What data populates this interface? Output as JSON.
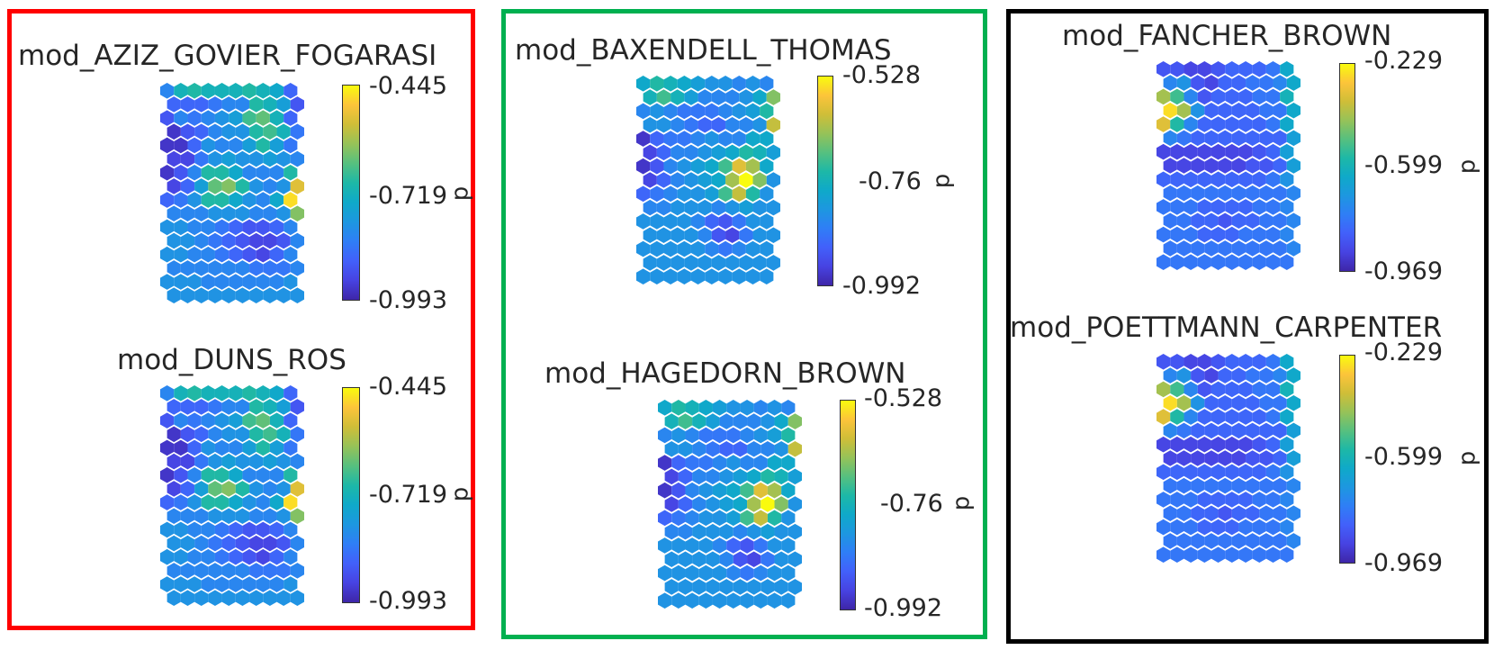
{
  "colormap": [
    "#3e26a8",
    "#4743e2",
    "#4260fa",
    "#2f7ef6",
    "#1d97e0",
    "#0fa9c9",
    "#1db8a7",
    "#56c07f",
    "#96c258",
    "#cfbe38",
    "#fcc43a",
    "#f9fb0e"
  ],
  "frames": [
    {
      "name": "red-group",
      "color": "#ff0000"
    },
    {
      "name": "green-group",
      "color": "#00b050"
    },
    {
      "name": "black-group",
      "color": "#000000"
    }
  ],
  "panels": [
    {
      "title": "mod_AZIZ_GOVIER_FOGARASI",
      "colorbar": {
        "max": "-0.445",
        "mid": "-0.719",
        "min": "-0.993",
        "label": "d"
      },
      "variant": "A"
    },
    {
      "title": "mod_DUNS_ROS",
      "colorbar": {
        "max": "-0.445",
        "mid": "-0.719",
        "min": "-0.993",
        "label": "d"
      },
      "variant": "A"
    },
    {
      "title": "mod_BAXENDELL_THOMAS",
      "colorbar": {
        "max": "-0.528",
        "mid": "-0.76",
        "min": "-0.992",
        "label": "d"
      },
      "variant": "B"
    },
    {
      "title": "mod_HAGEDORN_BROWN",
      "colorbar": {
        "max": "-0.528",
        "mid": "-0.76",
        "min": "-0.992",
        "label": "d"
      },
      "variant": "B"
    },
    {
      "title": "mod_FANCHER_BROWN",
      "colorbar": {
        "max": "-0.229",
        "mid": "-0.599",
        "min": "-0.969",
        "label": "d"
      },
      "variant": "C"
    },
    {
      "title": "mod_POETTMANN_CARPENTER",
      "colorbar": {
        "max": "-0.229",
        "mid": "-0.599",
        "min": "-0.969",
        "label": "d"
      },
      "variant": "C"
    }
  ],
  "chart_data": [
    {
      "type": "heatmap",
      "title": "mod_AZIZ_GOVIER_FOGARASI",
      "colorbar_label": "d",
      "zlim": [
        -0.993,
        -0.445
      ],
      "colorbar_ticks": [
        -0.993,
        -0.719,
        -0.445
      ],
      "grid": {
        "cols": 10,
        "rows": 16,
        "shape": "hexagonal"
      },
      "values": [
        [
          0.3,
          0.5,
          0.55,
          0.5,
          0.5,
          0.5,
          0.55,
          0.5,
          0.45,
          0.2
        ],
        [
          0.2,
          0.2,
          0.2,
          0.25,
          0.3,
          0.3,
          0.55,
          0.5,
          0.4,
          0.15
        ],
        [
          0.15,
          0.3,
          0.25,
          0.3,
          0.35,
          0.4,
          0.6,
          0.65,
          0.5,
          0.2
        ],
        [
          0.05,
          0.15,
          0.2,
          0.3,
          0.35,
          0.35,
          0.55,
          0.6,
          0.5,
          0.25
        ],
        [
          0.05,
          0.05,
          0.2,
          0.35,
          0.3,
          0.3,
          0.4,
          0.55,
          0.4,
          0.25
        ],
        [
          0.1,
          0.1,
          0.25,
          0.35,
          0.4,
          0.35,
          0.35,
          0.4,
          0.35,
          0.3
        ],
        [
          0.05,
          0.15,
          0.3,
          0.55,
          0.55,
          0.45,
          0.3,
          0.3,
          0.3,
          0.55
        ],
        [
          0.1,
          0.2,
          0.4,
          0.65,
          0.7,
          0.55,
          0.35,
          0.3,
          0.35,
          0.85
        ],
        [
          0.2,
          0.25,
          0.35,
          0.55,
          0.55,
          0.45,
          0.35,
          0.3,
          0.45,
          0.95
        ],
        [
          0.3,
          0.3,
          0.3,
          0.35,
          0.35,
          0.35,
          0.3,
          0.3,
          0.35,
          0.7
        ],
        [
          0.35,
          0.35,
          0.3,
          0.3,
          0.25,
          0.2,
          0.15,
          0.15,
          0.2,
          0.3
        ],
        [
          0.35,
          0.35,
          0.3,
          0.25,
          0.2,
          0.15,
          0.1,
          0.1,
          0.15,
          0.3
        ],
        [
          0.35,
          0.35,
          0.3,
          0.3,
          0.25,
          0.2,
          0.15,
          0.1,
          0.2,
          0.3
        ],
        [
          0.3,
          0.3,
          0.3,
          0.3,
          0.3,
          0.3,
          0.25,
          0.25,
          0.25,
          0.3
        ],
        [
          0.35,
          0.35,
          0.35,
          0.3,
          0.3,
          0.3,
          0.3,
          0.3,
          0.3,
          0.35
        ],
        [
          0.35,
          0.35,
          0.35,
          0.35,
          0.35,
          0.35,
          0.35,
          0.35,
          0.35,
          0.35
        ]
      ]
    },
    {
      "type": "heatmap",
      "title": "mod_DUNS_ROS",
      "colorbar_label": "d",
      "zlim": [
        -0.993,
        -0.445
      ],
      "colorbar_ticks": [
        -0.993,
        -0.719,
        -0.445
      ],
      "grid": {
        "cols": 10,
        "rows": 16,
        "shape": "hexagonal"
      },
      "values": [
        [
          0.3,
          0.5,
          0.55,
          0.5,
          0.5,
          0.5,
          0.55,
          0.5,
          0.45,
          0.2
        ],
        [
          0.2,
          0.2,
          0.2,
          0.25,
          0.3,
          0.3,
          0.55,
          0.5,
          0.4,
          0.15
        ],
        [
          0.15,
          0.3,
          0.25,
          0.3,
          0.35,
          0.4,
          0.6,
          0.65,
          0.5,
          0.2
        ],
        [
          0.05,
          0.15,
          0.2,
          0.3,
          0.35,
          0.35,
          0.55,
          0.6,
          0.5,
          0.25
        ],
        [
          0.05,
          0.05,
          0.2,
          0.35,
          0.3,
          0.3,
          0.4,
          0.55,
          0.4,
          0.25
        ],
        [
          0.1,
          0.1,
          0.25,
          0.35,
          0.4,
          0.35,
          0.35,
          0.4,
          0.35,
          0.3
        ],
        [
          0.05,
          0.15,
          0.3,
          0.55,
          0.55,
          0.45,
          0.3,
          0.3,
          0.3,
          0.55
        ],
        [
          0.1,
          0.2,
          0.4,
          0.65,
          0.7,
          0.55,
          0.35,
          0.3,
          0.35,
          0.85
        ],
        [
          0.2,
          0.25,
          0.35,
          0.55,
          0.55,
          0.45,
          0.35,
          0.3,
          0.45,
          0.95
        ],
        [
          0.3,
          0.3,
          0.3,
          0.35,
          0.35,
          0.35,
          0.3,
          0.3,
          0.35,
          0.7
        ],
        [
          0.35,
          0.35,
          0.3,
          0.3,
          0.25,
          0.2,
          0.15,
          0.15,
          0.2,
          0.3
        ],
        [
          0.35,
          0.35,
          0.3,
          0.25,
          0.2,
          0.15,
          0.1,
          0.1,
          0.15,
          0.3
        ],
        [
          0.35,
          0.35,
          0.3,
          0.3,
          0.25,
          0.2,
          0.15,
          0.1,
          0.2,
          0.3
        ],
        [
          0.3,
          0.3,
          0.3,
          0.3,
          0.3,
          0.3,
          0.25,
          0.25,
          0.25,
          0.3
        ],
        [
          0.35,
          0.35,
          0.35,
          0.3,
          0.3,
          0.3,
          0.3,
          0.3,
          0.3,
          0.35
        ],
        [
          0.35,
          0.35,
          0.35,
          0.35,
          0.35,
          0.35,
          0.35,
          0.35,
          0.35,
          0.35
        ]
      ]
    },
    {
      "type": "heatmap",
      "title": "mod_BAXENDELL_THOMAS",
      "colorbar_label": "d",
      "zlim": [
        -0.992,
        -0.528
      ],
      "colorbar_ticks": [
        -0.992,
        -0.76,
        -0.528
      ],
      "grid": {
        "cols": 10,
        "rows": 15,
        "shape": "hexagonal"
      },
      "values": [
        [
          0.45,
          0.55,
          0.5,
          0.45,
          0.4,
          0.35,
          0.35,
          0.3,
          0.35,
          0.3
        ],
        [
          0.5,
          0.6,
          0.5,
          0.4,
          0.3,
          0.3,
          0.3,
          0.35,
          0.45,
          0.7
        ],
        [
          0.3,
          0.35,
          0.3,
          0.25,
          0.25,
          0.25,
          0.3,
          0.35,
          0.4,
          0.55
        ],
        [
          0.35,
          0.35,
          0.3,
          0.25,
          0.2,
          0.2,
          0.3,
          0.3,
          0.35,
          0.8
        ],
        [
          0.05,
          0.2,
          0.25,
          0.25,
          0.3,
          0.35,
          0.3,
          0.3,
          0.45,
          0.45
        ],
        [
          0.1,
          0.2,
          0.3,
          0.3,
          0.35,
          0.4,
          0.45,
          0.55,
          0.5,
          0.4
        ],
        [
          0.05,
          0.15,
          0.3,
          0.35,
          0.4,
          0.45,
          0.6,
          0.85,
          0.75,
          0.45
        ],
        [
          0.1,
          0.2,
          0.3,
          0.35,
          0.4,
          0.45,
          0.75,
          1.0,
          0.7,
          0.35
        ],
        [
          0.2,
          0.25,
          0.3,
          0.35,
          0.35,
          0.4,
          0.6,
          0.8,
          0.55,
          0.35
        ],
        [
          0.3,
          0.3,
          0.35,
          0.35,
          0.35,
          0.3,
          0.35,
          0.4,
          0.35,
          0.35
        ],
        [
          0.35,
          0.35,
          0.35,
          0.35,
          0.3,
          0.2,
          0.15,
          0.25,
          0.35,
          0.35
        ],
        [
          0.35,
          0.35,
          0.35,
          0.35,
          0.3,
          0.15,
          0.1,
          0.25,
          0.35,
          0.35
        ],
        [
          0.35,
          0.35,
          0.35,
          0.35,
          0.35,
          0.3,
          0.25,
          0.3,
          0.35,
          0.35
        ],
        [
          0.35,
          0.35,
          0.35,
          0.35,
          0.35,
          0.35,
          0.35,
          0.35,
          0.35,
          0.35
        ],
        [
          0.35,
          0.35,
          0.35,
          0.35,
          0.35,
          0.35,
          0.35,
          0.35,
          0.35,
          0.35
        ]
      ]
    },
    {
      "type": "heatmap",
      "title": "mod_HAGEDORN_BROWN",
      "colorbar_label": "d",
      "zlim": [
        -0.992,
        -0.528
      ],
      "colorbar_ticks": [
        -0.992,
        -0.76,
        -0.528
      ],
      "grid": {
        "cols": 10,
        "rows": 15,
        "shape": "hexagonal"
      },
      "values": [
        [
          0.45,
          0.55,
          0.5,
          0.45,
          0.4,
          0.35,
          0.35,
          0.3,
          0.35,
          0.3
        ],
        [
          0.5,
          0.6,
          0.5,
          0.4,
          0.3,
          0.3,
          0.3,
          0.35,
          0.45,
          0.7
        ],
        [
          0.3,
          0.35,
          0.3,
          0.25,
          0.25,
          0.25,
          0.3,
          0.35,
          0.4,
          0.55
        ],
        [
          0.35,
          0.35,
          0.3,
          0.25,
          0.2,
          0.2,
          0.3,
          0.3,
          0.35,
          0.8
        ],
        [
          0.05,
          0.2,
          0.25,
          0.25,
          0.3,
          0.35,
          0.3,
          0.3,
          0.45,
          0.45
        ],
        [
          0.1,
          0.2,
          0.3,
          0.3,
          0.35,
          0.4,
          0.45,
          0.55,
          0.5,
          0.4
        ],
        [
          0.05,
          0.15,
          0.3,
          0.35,
          0.4,
          0.45,
          0.6,
          0.85,
          0.75,
          0.45
        ],
        [
          0.1,
          0.2,
          0.3,
          0.35,
          0.4,
          0.45,
          0.75,
          1.0,
          0.7,
          0.35
        ],
        [
          0.2,
          0.25,
          0.3,
          0.35,
          0.35,
          0.4,
          0.6,
          0.8,
          0.55,
          0.35
        ],
        [
          0.3,
          0.3,
          0.35,
          0.35,
          0.35,
          0.3,
          0.35,
          0.4,
          0.35,
          0.35
        ],
        [
          0.35,
          0.35,
          0.35,
          0.35,
          0.3,
          0.2,
          0.15,
          0.25,
          0.35,
          0.35
        ],
        [
          0.35,
          0.35,
          0.35,
          0.35,
          0.3,
          0.15,
          0.1,
          0.25,
          0.35,
          0.35
        ],
        [
          0.35,
          0.35,
          0.35,
          0.35,
          0.35,
          0.3,
          0.25,
          0.3,
          0.35,
          0.35
        ],
        [
          0.35,
          0.35,
          0.35,
          0.35,
          0.35,
          0.35,
          0.35,
          0.35,
          0.35,
          0.35
        ],
        [
          0.35,
          0.35,
          0.35,
          0.35,
          0.35,
          0.35,
          0.35,
          0.35,
          0.35,
          0.35
        ]
      ]
    },
    {
      "type": "heatmap",
      "title": "mod_FANCHER_BROWN",
      "colorbar_label": "d",
      "zlim": [
        -0.969,
        -0.229
      ],
      "colorbar_ticks": [
        -0.969,
        -0.599,
        -0.229
      ],
      "grid": {
        "cols": 10,
        "rows": 15,
        "shape": "hexagonal"
      },
      "values": [
        [
          0.15,
          0.15,
          0.1,
          0.1,
          0.15,
          0.2,
          0.2,
          0.2,
          0.25,
          0.45
        ],
        [
          0.3,
          0.35,
          0.15,
          0.1,
          0.2,
          0.2,
          0.25,
          0.25,
          0.3,
          0.45
        ],
        [
          0.75,
          0.6,
          0.3,
          0.15,
          0.2,
          0.2,
          0.2,
          0.25,
          0.25,
          0.5
        ],
        [
          0.95,
          0.75,
          0.35,
          0.2,
          0.2,
          0.2,
          0.2,
          0.25,
          0.25,
          0.45
        ],
        [
          0.85,
          0.55,
          0.3,
          0.2,
          0.2,
          0.2,
          0.2,
          0.2,
          0.25,
          0.45
        ],
        [
          0.3,
          0.25,
          0.2,
          0.2,
          0.2,
          0.2,
          0.2,
          0.2,
          0.2,
          0.4
        ],
        [
          0.1,
          0.1,
          0.1,
          0.1,
          0.1,
          0.1,
          0.1,
          0.15,
          0.2,
          0.4
        ],
        [
          0.1,
          0.1,
          0.1,
          0.1,
          0.1,
          0.1,
          0.15,
          0.15,
          0.2,
          0.4
        ],
        [
          0.2,
          0.2,
          0.2,
          0.2,
          0.2,
          0.2,
          0.2,
          0.2,
          0.25,
          0.35
        ],
        [
          0.25,
          0.25,
          0.25,
          0.25,
          0.25,
          0.25,
          0.25,
          0.25,
          0.25,
          0.3
        ],
        [
          0.25,
          0.25,
          0.25,
          0.2,
          0.2,
          0.2,
          0.2,
          0.25,
          0.25,
          0.3
        ],
        [
          0.25,
          0.25,
          0.2,
          0.2,
          0.15,
          0.2,
          0.2,
          0.25,
          0.25,
          0.3
        ],
        [
          0.25,
          0.25,
          0.25,
          0.2,
          0.2,
          0.2,
          0.25,
          0.25,
          0.25,
          0.3
        ],
        [
          0.25,
          0.25,
          0.25,
          0.25,
          0.25,
          0.25,
          0.25,
          0.25,
          0.25,
          0.3
        ],
        [
          0.25,
          0.25,
          0.25,
          0.25,
          0.25,
          0.25,
          0.25,
          0.25,
          0.25,
          0.25
        ]
      ]
    },
    {
      "type": "heatmap",
      "title": "mod_POETTMANN_CARPENTER",
      "colorbar_label": "d",
      "zlim": [
        -0.969,
        -0.229
      ],
      "colorbar_ticks": [
        -0.969,
        -0.599,
        -0.229
      ],
      "grid": {
        "cols": 10,
        "rows": 15,
        "shape": "hexagonal"
      },
      "values": [
        [
          0.15,
          0.15,
          0.1,
          0.1,
          0.15,
          0.2,
          0.2,
          0.2,
          0.25,
          0.45
        ],
        [
          0.3,
          0.35,
          0.15,
          0.1,
          0.2,
          0.2,
          0.25,
          0.25,
          0.3,
          0.45
        ],
        [
          0.75,
          0.6,
          0.3,
          0.15,
          0.2,
          0.2,
          0.2,
          0.25,
          0.25,
          0.5
        ],
        [
          0.95,
          0.75,
          0.35,
          0.2,
          0.2,
          0.2,
          0.2,
          0.25,
          0.25,
          0.45
        ],
        [
          0.85,
          0.55,
          0.3,
          0.2,
          0.2,
          0.2,
          0.2,
          0.2,
          0.25,
          0.45
        ],
        [
          0.3,
          0.25,
          0.2,
          0.2,
          0.2,
          0.2,
          0.2,
          0.2,
          0.2,
          0.4
        ],
        [
          0.1,
          0.1,
          0.1,
          0.1,
          0.1,
          0.1,
          0.1,
          0.15,
          0.2,
          0.4
        ],
        [
          0.1,
          0.1,
          0.1,
          0.1,
          0.1,
          0.1,
          0.15,
          0.15,
          0.2,
          0.4
        ],
        [
          0.2,
          0.2,
          0.2,
          0.2,
          0.2,
          0.2,
          0.2,
          0.2,
          0.25,
          0.35
        ],
        [
          0.25,
          0.25,
          0.25,
          0.25,
          0.25,
          0.25,
          0.25,
          0.25,
          0.25,
          0.3
        ],
        [
          0.25,
          0.25,
          0.25,
          0.2,
          0.2,
          0.2,
          0.2,
          0.25,
          0.25,
          0.3
        ],
        [
          0.25,
          0.25,
          0.2,
          0.2,
          0.15,
          0.2,
          0.2,
          0.25,
          0.25,
          0.3
        ],
        [
          0.25,
          0.25,
          0.25,
          0.2,
          0.2,
          0.2,
          0.25,
          0.25,
          0.25,
          0.3
        ],
        [
          0.25,
          0.25,
          0.25,
          0.25,
          0.25,
          0.25,
          0.25,
          0.25,
          0.25,
          0.3
        ],
        [
          0.25,
          0.25,
          0.25,
          0.25,
          0.25,
          0.25,
          0.25,
          0.25,
          0.25,
          0.25
        ]
      ]
    }
  ]
}
